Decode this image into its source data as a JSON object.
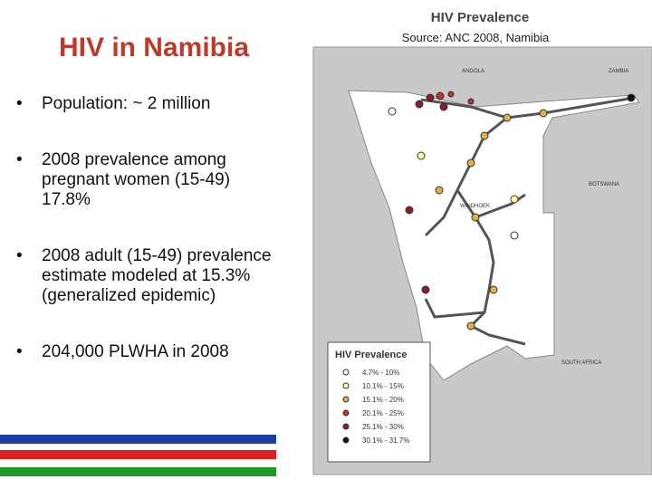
{
  "header": {
    "title": "HIV in Namibia"
  },
  "bullets": [
    "Population: ~ 2 million",
    "2008 prevalence among pregnant women (15-49) 17.8%",
    "2008 adult (15-49) prevalence estimate modeled at 15.3% (generalized epidemic)",
    "204,000 PLWHA in 2008"
  ],
  "map": {
    "title": "HIV Prevalence",
    "source": "Source: ANC 2008, Namibia",
    "labels": [
      "ANGOLA",
      "ZAMBIA",
      "BOTSWANA",
      "WINDHOEK",
      "SOUTH AFRICA"
    ],
    "legend": {
      "title": "HIV Prevalence",
      "entries": [
        "4.7% - 10%",
        "10.1% - 15%",
        "15.1% - 20%",
        "20.1% - 25%",
        "25.1% - 30%",
        "30.1% - 31.7%"
      ]
    }
  }
}
